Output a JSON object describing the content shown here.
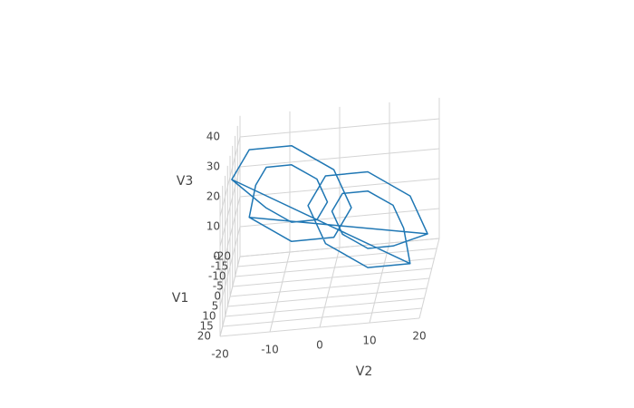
{
  "chart_data": {
    "type": "line3d",
    "xaxis_title": "V1",
    "yaxis_title": "V2",
    "zaxis_title": "V3",
    "xlim": [
      -20,
      20
    ],
    "ylim": [
      -20,
      20
    ],
    "zlim": [
      0,
      47
    ],
    "xticks": [
      -20,
      -15,
      -10,
      -5,
      0,
      5,
      10,
      15,
      20
    ],
    "yticks": [
      -20,
      -10,
      0,
      10,
      20
    ],
    "zticks": [
      0,
      10,
      20,
      30,
      40
    ],
    "grid": true,
    "series": [
      {
        "color": "#1f77b4",
        "x": [
          14.5,
          12.7,
          8.5,
          4.3,
          2.5,
          4.3,
          8.5,
          12.7,
          18.5,
          15.6,
          8.5,
          1.4,
          -1.5,
          1.4,
          8.5,
          15.6,
          -18.5,
          -15.6,
          -8.5,
          -1.4,
          1.5,
          -1.4,
          -8.5,
          -15.6,
          -14.5,
          -12.7,
          -8.5,
          -4.3,
          -2.5,
          -4.3,
          -8.5,
          -12.7,
          -18.5,
          -15.6,
          -8.5,
          -1.4,
          1.5,
          -1.4,
          -8.5,
          -15.6,
          18.5,
          15.6,
          8.5,
          1.4,
          -1.5,
          1.4,
          8.5,
          15.6,
          14.5,
          12.7,
          8.5,
          4.3,
          2.5,
          4.3,
          8.5,
          12.7
        ],
        "y": [
          16.3,
          14.0,
          8.5,
          3.0,
          0.7,
          3.0,
          8.5,
          14.0,
          21.5,
          17.7,
          8.5,
          -0.7,
          -4.5,
          -0.7,
          8.5,
          17.7,
          -21.5,
          -17.7,
          -8.5,
          0.7,
          4.5,
          0.7,
          -8.5,
          -17.7,
          -16.3,
          -14.0,
          -8.5,
          -3.0,
          -0.7,
          -3.0,
          -8.5,
          -14.0,
          -21.5,
          -17.7,
          -8.5,
          0.7,
          4.5,
          0.7,
          -8.5,
          -17.7,
          21.5,
          17.7,
          8.5,
          -0.7,
          -4.5,
          -0.7,
          8.5,
          17.7,
          16.3,
          14.0,
          8.5,
          3.0,
          0.7,
          3.0,
          8.5,
          14.0
        ],
        "z": [
          27,
          33.8,
          36.6,
          33.8,
          27,
          20.2,
          17.4,
          20.2,
          27,
          38.3,
          43,
          38.3,
          27,
          15.7,
          11,
          15.7,
          27,
          38.3,
          43,
          38.3,
          27,
          15.7,
          11,
          15.7,
          27,
          33.8,
          36.6,
          33.8,
          27,
          20.2,
          17.4,
          20.2,
          27,
          38.3,
          43,
          38.3,
          27,
          15.7,
          11,
          15.7,
          27,
          38.3,
          43,
          38.3,
          27,
          15.7,
          11,
          15.7,
          27,
          33.8,
          36.6,
          33.8,
          27,
          20.2,
          17.4,
          20.2
        ]
      }
    ]
  }
}
